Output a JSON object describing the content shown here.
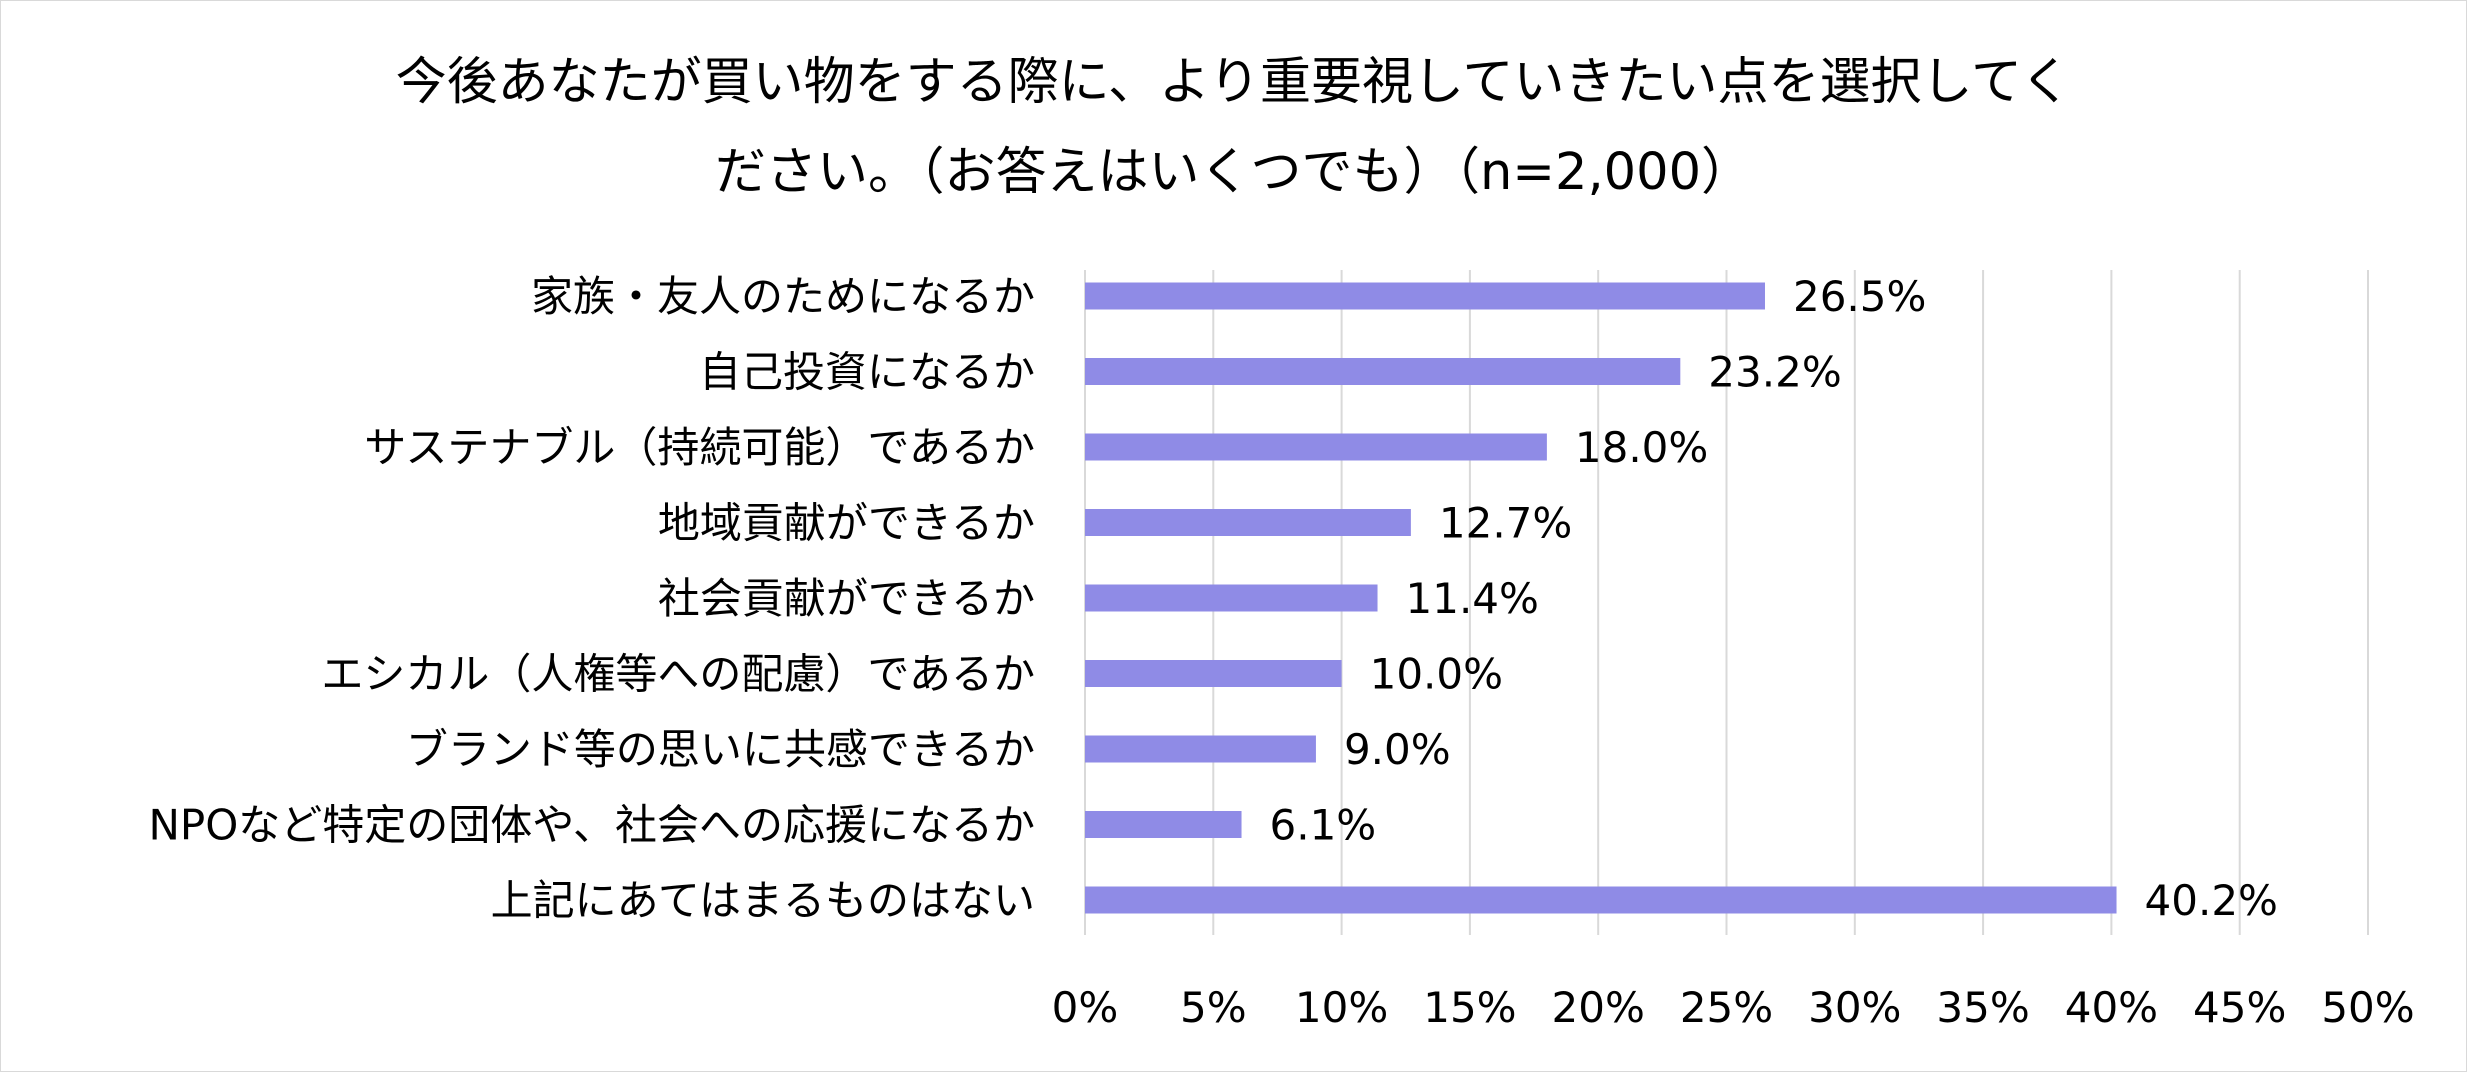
{
  "chart_data": {
    "type": "bar",
    "orientation": "horizontal",
    "title_lines": [
      "今後あなたが買い物をする際に、より重要視していきたい点を選択してく",
      "ださい。（お答えはいくつでも）（n=2,000）"
    ],
    "categories": [
      "家族・友人のためになるか",
      "自己投資になるか",
      "サステナブル（持続可能）であるか",
      "地域貢献ができるか",
      "社会貢献ができるか",
      "エシカル（人権等への配慮）であるか",
      "ブランド等の思いに共感できるか",
      "NPOなど特定の団体や、社会への応援になるか",
      "上記にあてはまるものはない"
    ],
    "values": [
      26.5,
      23.2,
      18.0,
      12.7,
      11.4,
      10.0,
      9.0,
      6.1,
      40.2
    ],
    "value_labels": [
      "26.5%",
      "23.2%",
      "18.0%",
      "12.7%",
      "11.4%",
      "10.0%",
      "9.0%",
      "6.1%",
      "40.2%"
    ],
    "xlim": [
      0,
      50
    ],
    "xticks": [
      0,
      5,
      10,
      15,
      20,
      25,
      30,
      35,
      40,
      45,
      50
    ],
    "xtick_labels": [
      "0%",
      "5%",
      "10%",
      "15%",
      "20%",
      "25%",
      "30%",
      "35%",
      "40%",
      "45%",
      "50%"
    ],
    "grid": "vertical",
    "legend": "none",
    "bar_color": "#8f8be6",
    "grid_color": "#d9d9d9"
  }
}
